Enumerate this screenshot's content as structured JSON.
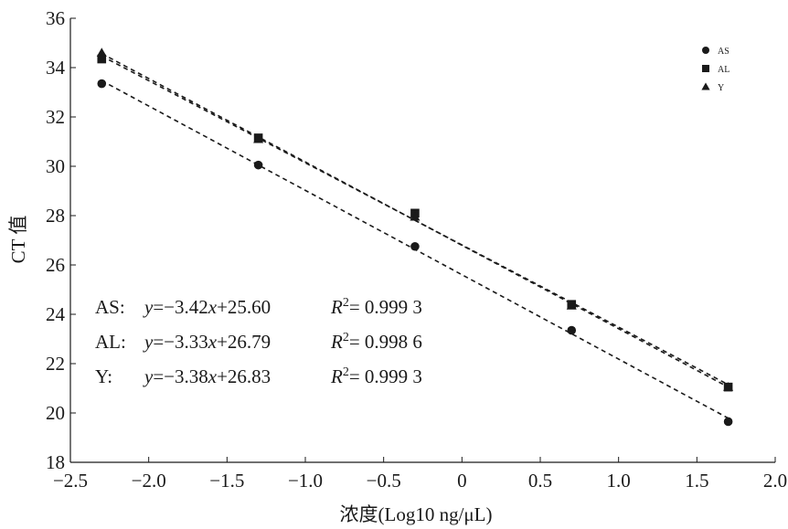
{
  "chart_data": {
    "type": "scatter",
    "xlabel": "浓度(Log10 ng/μL)",
    "ylabel": "CT 值",
    "xlim": [
      -2.5,
      2.0
    ],
    "ylim": [
      18,
      36
    ],
    "xticks": [
      -2.5,
      -2.0,
      -1.5,
      -1.0,
      -0.5,
      0,
      0.5,
      1.0,
      1.5,
      2.0
    ],
    "xtick_labels": [
      "−2.5",
      "−2.0",
      "−1.5",
      "−1.0",
      "−0.5",
      "0",
      "0.5",
      "1.0",
      "1.5",
      "2.0"
    ],
    "yticks": [
      18,
      20,
      22,
      24,
      26,
      28,
      30,
      32,
      34,
      36
    ],
    "ytick_labels": [
      "18",
      "20",
      "22",
      "24",
      "26",
      "28",
      "30",
      "32",
      "34",
      "36"
    ],
    "grid": false,
    "legend_position": "top-right",
    "x": [
      -2.3,
      -1.3,
      -0.3,
      0.7,
      1.7
    ],
    "series": [
      {
        "name": "AS",
        "marker": "circle",
        "values": [
          33.35,
          30.05,
          26.75,
          23.35,
          19.65
        ],
        "fit": {
          "slope": -3.42,
          "intercept": 25.6
        },
        "r2_label": "0.999 3"
      },
      {
        "name": "AL",
        "marker": "square",
        "values": [
          34.35,
          31.15,
          28.1,
          24.4,
          21.05
        ],
        "fit": {
          "slope": -3.33,
          "intercept": 26.79
        },
        "r2_label": "0.998 6"
      },
      {
        "name": "Y",
        "marker": "triangle",
        "values": [
          34.6,
          31.1,
          27.95,
          24.35,
          21.05
        ],
        "fit": {
          "slope": -3.38,
          "intercept": 26.83
        },
        "r2_label": "0.999 3"
      }
    ],
    "annotations": [
      {
        "label": "AS:",
        "slope": "−3.42",
        "intercept": "+25.60",
        "r2": "0.999 3"
      },
      {
        "label": "AL:",
        "slope": "−3.33",
        "intercept": "+26.79",
        "r2": "0.998 6"
      },
      {
        "label": "Y:",
        "slope": "−3.38",
        "intercept": "+26.83",
        "r2": "0.999 3"
      }
    ],
    "colors": {
      "ink": "#1a1a1a",
      "background": "#ffffff"
    }
  }
}
